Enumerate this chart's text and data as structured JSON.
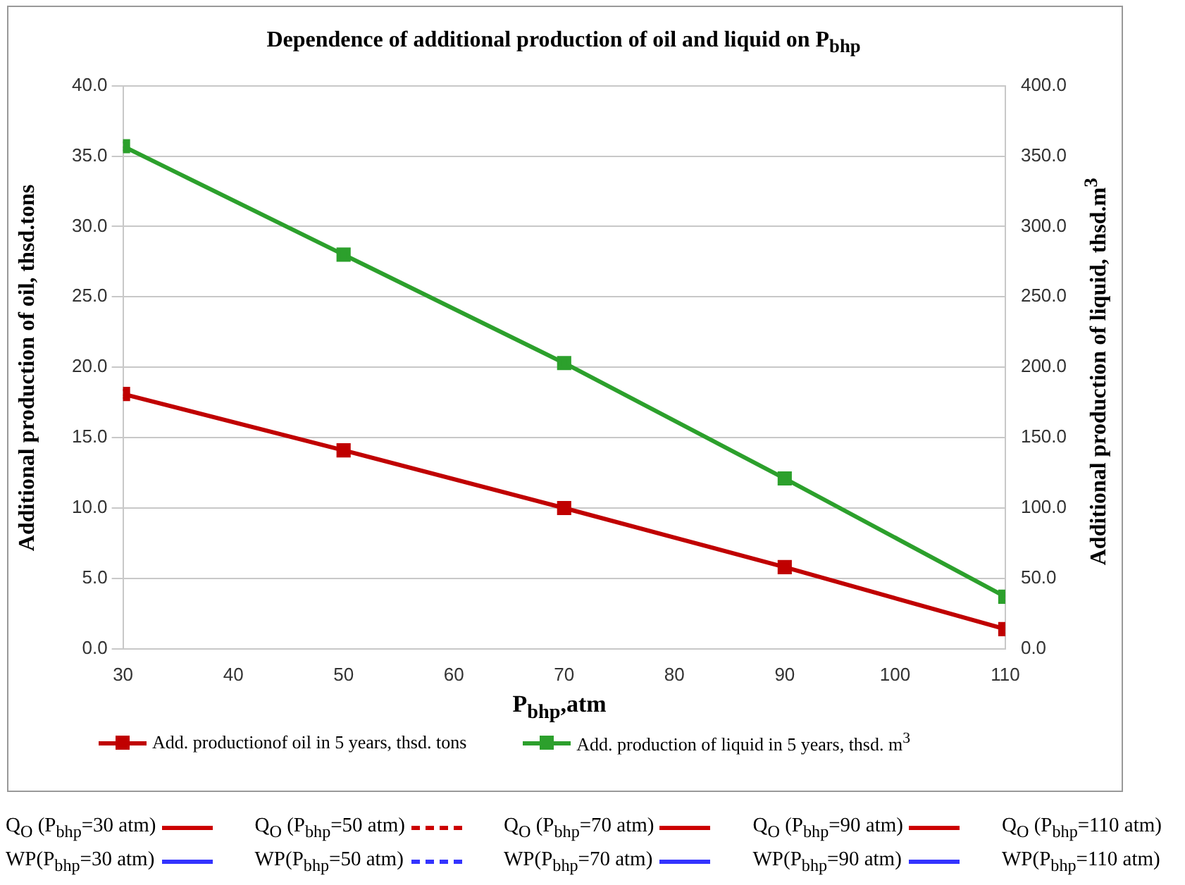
{
  "chart_data": {
    "type": "line",
    "title": "Dependence of additional production of oil and liquid on P$_{bhp}$",
    "xlabel": "P$_{bhp}$,atm",
    "ylabel": "Additional production of oil, thsd.tons",
    "y2label": "Additional production of liquid, thsd.m$^{3}$",
    "x": [
      30,
      50,
      70,
      90,
      110
    ],
    "series": [
      {
        "name": "Add. productionof oil in 5 years, thsd. tons",
        "color": "#c00000",
        "values": [
          18.1,
          14.1,
          10.0,
          5.8,
          1.4
        ]
      },
      {
        "name": "Add. production of liquid in 5 years, thsd. m$^{3}$",
        "color": "#2ca02c",
        "values": [
          357,
          280,
          203,
          121,
          37
        ],
        "axis": "y2"
      }
    ],
    "xlim": [
      30,
      110
    ],
    "xticks": [
      30,
      40,
      50,
      60,
      70,
      80,
      90,
      100,
      110
    ],
    "ylim": [
      0,
      40
    ],
    "yticks": [
      {
        "value": 0,
        "label": "0.0"
      },
      {
        "value": 5,
        "label": "5.0"
      },
      {
        "value": 10,
        "label": "10.0"
      },
      {
        "value": 15,
        "label": "15.0"
      },
      {
        "value": 20,
        "label": "20.0"
      },
      {
        "value": 25,
        "label": "25.0"
      },
      {
        "value": 30,
        "label": "30.0"
      },
      {
        "value": 35,
        "label": "35.0"
      },
      {
        "value": 40,
        "label": "40.0"
      }
    ],
    "y2lim": [
      0,
      400
    ],
    "y2ticks": [
      {
        "value": 0,
        "label": "0.0"
      },
      {
        "value": 50,
        "label": "50.0"
      },
      {
        "value": 100,
        "label": "100.0"
      },
      {
        "value": 150,
        "label": "150.0"
      },
      {
        "value": 200,
        "label": "200.0"
      },
      {
        "value": 250,
        "label": "250.0"
      },
      {
        "value": 300,
        "label": "300.0"
      },
      {
        "value": 350,
        "label": "350.0"
      },
      {
        "value": 400,
        "label": "400.0"
      }
    ],
    "grid": "y",
    "legend": "bottom",
    "marker": "square",
    "line_style": "solid",
    "annotations": [
      "Q$_{O}$ (P$_{bhp}$=30 atm)",
      "Q$_{O}$ (P$_{bhp}$=50 atm)",
      "Q$_{O}$ (P$_{bhp}$=70 atm)",
      "Q$_{O}$ (P$_{bhp}$=90 atm)",
      "Q$_{O}$ (P$_{bhp}$=110 atm)",
      "WP(P$_{bhp}$=30 atm)",
      "WP(P$_{bhp}$=50 atm)",
      "WP(P$_{bhp}$=70 atm)",
      "WP(P$_{bhp}$=90 atm)",
      "WP(P$_{bhp}$=110 atm)"
    ]
  }
}
